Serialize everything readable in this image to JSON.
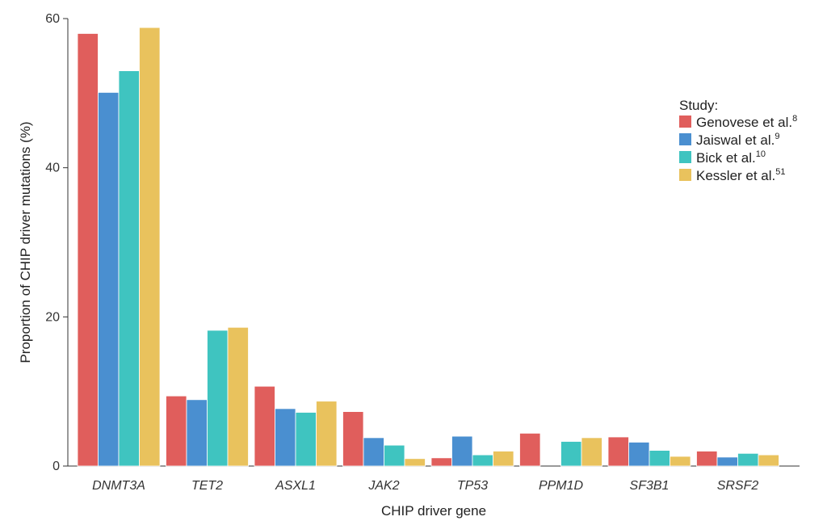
{
  "chart_data": {
    "type": "bar",
    "title": "",
    "xlabel": "CHIP driver gene",
    "ylabel": "Proportion of CHIP driver mutations (%)",
    "ylim": [
      0,
      60
    ],
    "yticks": [
      0,
      20,
      40,
      60
    ],
    "grid": false,
    "legend_position": "top-right",
    "legend_title": "Study:",
    "categories": [
      "DNMT3A",
      "TET2",
      "ASXL1",
      "JAK2",
      "TP53",
      "PPM1D",
      "SF3B1",
      "SRSF2"
    ],
    "series": [
      {
        "name": "Genovese et al.",
        "ref": "8",
        "color": "#e05e5c",
        "values": [
          58.0,
          9.4,
          10.7,
          7.3,
          1.1,
          4.4,
          3.9,
          2.0
        ]
      },
      {
        "name": "Jaiswal et al.",
        "ref": "9",
        "color": "#4a8fd0",
        "values": [
          50.1,
          8.9,
          7.7,
          3.8,
          4.0,
          0,
          3.2,
          1.2
        ]
      },
      {
        "name": "Bick et al.",
        "ref": "10",
        "color": "#3fc4c0",
        "values": [
          53.0,
          18.2,
          7.2,
          2.8,
          1.5,
          3.3,
          2.1,
          1.7
        ]
      },
      {
        "name": "Kessler et al.",
        "ref": "51",
        "color": "#e9c25d",
        "values": [
          58.8,
          18.6,
          8.7,
          1.0,
          2.0,
          3.8,
          1.3,
          1.5
        ]
      }
    ]
  }
}
